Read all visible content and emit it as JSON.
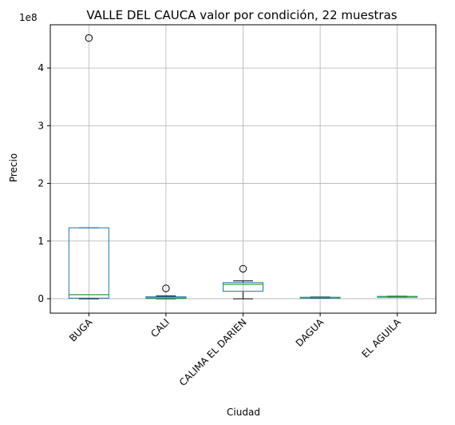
{
  "chart_data": {
    "type": "box",
    "title": "VALLE DEL CAUCA valor por condición, 22 muestras",
    "xlabel": "Ciudad",
    "ylabel": "Precio",
    "offset_label": "1e8",
    "scale": 100000000,
    "ylim": [
      -25000000,
      475000000
    ],
    "yticks": [
      0,
      100000000,
      200000000,
      300000000,
      400000000
    ],
    "ytick_labels": [
      "0",
      "1",
      "2",
      "3",
      "4"
    ],
    "grid": true,
    "categories": [
      "BUGA",
      "CALI",
      "CALIMA EL DARIEN",
      "DAGUA",
      "EL AGUILA"
    ],
    "boxes": [
      {
        "whislo": 0,
        "q1": 1000000,
        "med": 7000000,
        "q3": 123000000,
        "whishi": 123000000,
        "fliers": [
          452000000
        ]
      },
      {
        "whislo": 0,
        "q1": 500000,
        "med": 1500000,
        "q3": 3500000,
        "whishi": 5000000,
        "fliers": [
          18000000
        ]
      },
      {
        "whislo": 0,
        "q1": 13000000,
        "med": 25000000,
        "q3": 28000000,
        "whishi": 31000000,
        "fliers": [
          52000000
        ]
      },
      {
        "whislo": 1000000,
        "q1": 1500000,
        "med": 2000000,
        "q3": 2500000,
        "whishi": 3000000,
        "fliers": []
      },
      {
        "whislo": 2500000,
        "q1": 3000000,
        "med": 3500000,
        "q3": 4000000,
        "whishi": 4500000,
        "fliers": []
      }
    ],
    "colors": {
      "box": "#1f77b4",
      "median": "#2ca02c",
      "whisker": "#000000",
      "grid": "#b0b0b0",
      "flier": "#000000"
    }
  }
}
